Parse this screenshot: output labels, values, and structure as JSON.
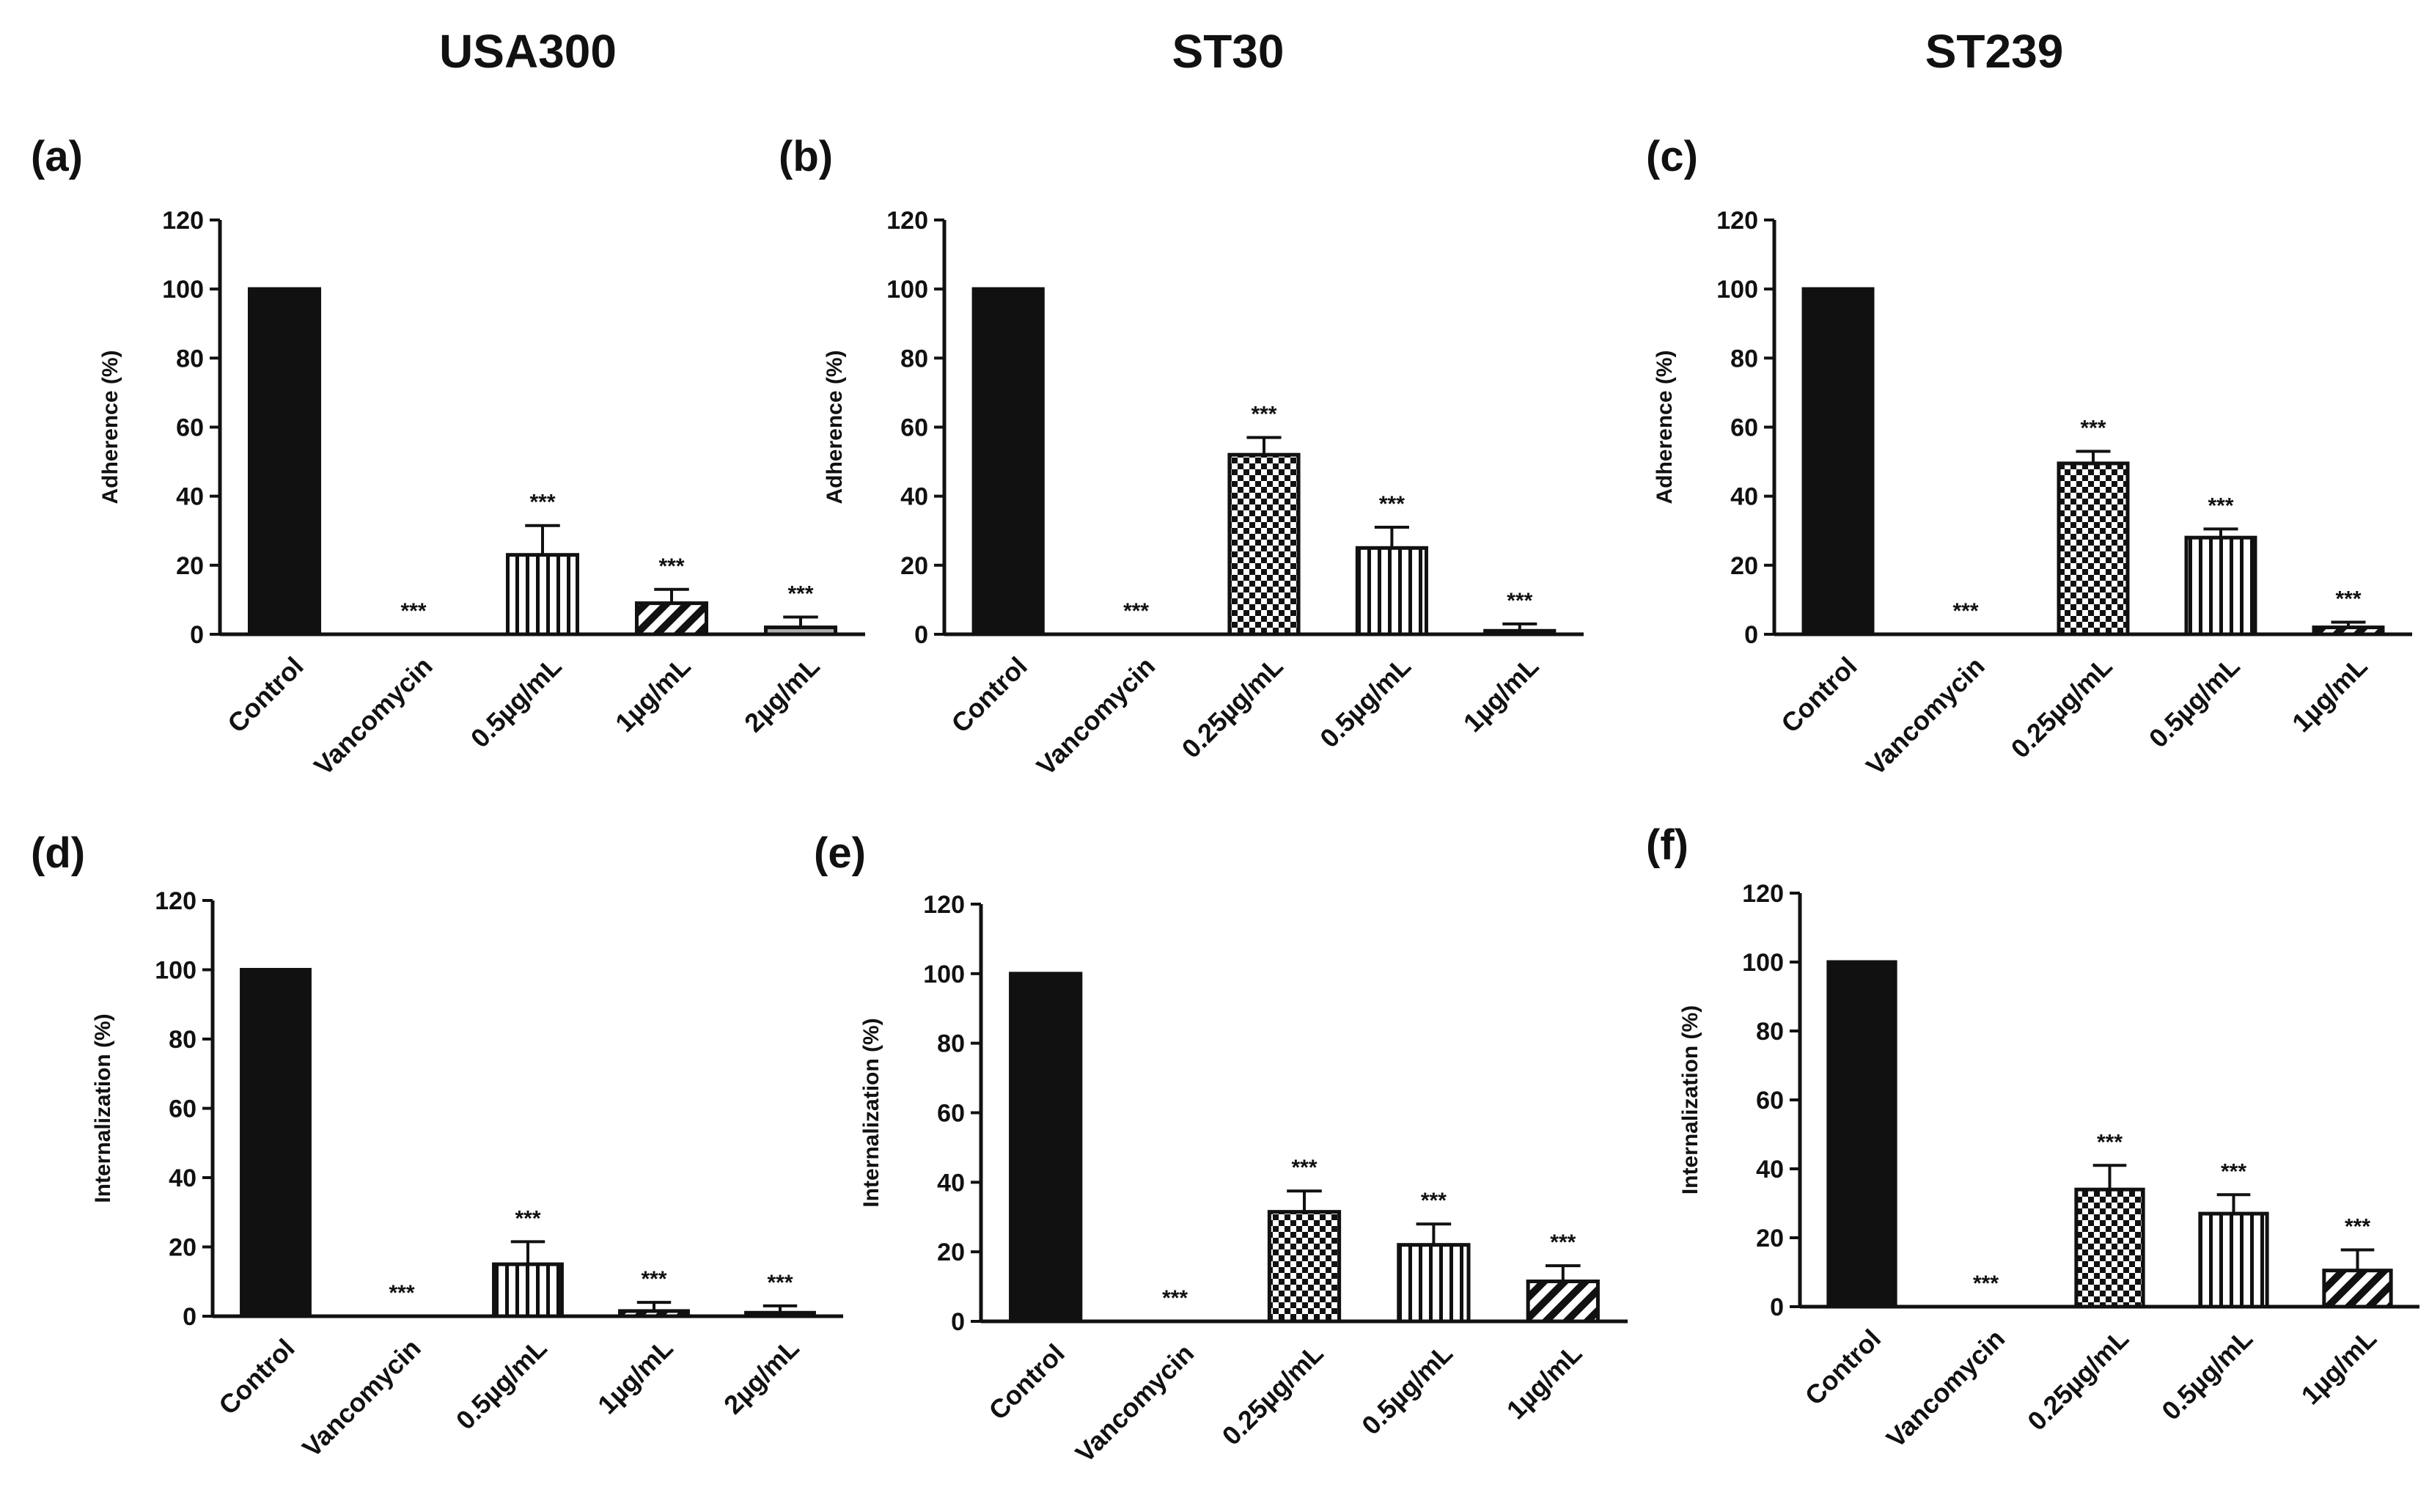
{
  "figure": {
    "column_titles": [
      "USA300",
      "ST30",
      "ST239"
    ]
  },
  "chart_data": [
    {
      "panel": "(a)",
      "type": "bar",
      "column": "USA300",
      "ylabel": "Adherence (%)",
      "ylim": [
        0,
        120
      ],
      "yticks": [
        0,
        20,
        40,
        60,
        80,
        100,
        120
      ],
      "categories": [
        "Control",
        "Vancomycin",
        "0.5µg/mL",
        "1µg/mL",
        "2µg/mL"
      ],
      "values": [
        100,
        0,
        23,
        9,
        2
      ],
      "errors": [
        0,
        0,
        8.5,
        4,
        3
      ],
      "significance": [
        "",
        "***",
        "***",
        "***",
        "***"
      ],
      "patterns": [
        "solid",
        "none",
        "vstripe",
        "diag",
        "gray"
      ]
    },
    {
      "panel": "(b)",
      "type": "bar",
      "column": "ST30",
      "ylabel": "Adherence (%)",
      "ylim": [
        0,
        120
      ],
      "yticks": [
        0,
        20,
        40,
        60,
        80,
        100,
        120
      ],
      "categories": [
        "Control",
        "Vancomycin",
        "0.25µg/mL",
        "0.5µg/mL",
        "1µg/mL"
      ],
      "values": [
        100,
        0,
        52,
        25,
        1
      ],
      "errors": [
        0,
        0,
        5,
        6,
        2
      ],
      "significance": [
        "",
        "***",
        "***",
        "***",
        "***"
      ],
      "patterns": [
        "solid",
        "none",
        "checker",
        "vstripe",
        "diag"
      ]
    },
    {
      "panel": "(c)",
      "type": "bar",
      "column": "ST239",
      "ylabel": "Adherence (%)",
      "ylim": [
        0,
        120
      ],
      "yticks": [
        0,
        20,
        40,
        60,
        80,
        100,
        120
      ],
      "categories": [
        "Control",
        "Vancomycin",
        "0.25µg/mL",
        "0.5µg/mL",
        "1µg/mL"
      ],
      "values": [
        100,
        0,
        49.5,
        28,
        2
      ],
      "errors": [
        0,
        0,
        3.5,
        2.5,
        1.5
      ],
      "significance": [
        "",
        "***",
        "***",
        "***",
        "***"
      ],
      "patterns": [
        "solid",
        "none",
        "checker",
        "vstripe",
        "diag"
      ]
    },
    {
      "panel": "(d)",
      "type": "bar",
      "column": "USA300",
      "ylabel": "Internalization (%)",
      "ylim": [
        0,
        120
      ],
      "yticks": [
        0,
        20,
        40,
        60,
        80,
        100,
        120
      ],
      "categories": [
        "Control",
        "Vancomycin",
        "0.5µg/mL",
        "1µg/mL",
        "2µg/mL"
      ],
      "values": [
        100,
        0,
        15,
        1.5,
        1
      ],
      "errors": [
        0,
        0,
        6.5,
        2.5,
        2
      ],
      "significance": [
        "",
        "***",
        "***",
        "***",
        "***"
      ],
      "patterns": [
        "solid",
        "none",
        "vstripe",
        "diag",
        "gray"
      ]
    },
    {
      "panel": "(e)",
      "type": "bar",
      "column": "ST30",
      "ylabel": "Internalization (%)",
      "ylim": [
        0,
        120
      ],
      "yticks": [
        0,
        20,
        40,
        60,
        80,
        100,
        120
      ],
      "categories": [
        "Control",
        "Vancomycin",
        "0.25µg/mL",
        "0.5µg/mL",
        "1µg/mL"
      ],
      "values": [
        100,
        0,
        31.5,
        22,
        11.5
      ],
      "errors": [
        0,
        0,
        6,
        6,
        4.5
      ],
      "significance": [
        "",
        "***",
        "***",
        "***",
        "***"
      ],
      "patterns": [
        "solid",
        "none",
        "checker",
        "vstripe",
        "diag"
      ]
    },
    {
      "panel": "(f)",
      "type": "bar",
      "column": "ST239",
      "ylabel": "Internalization (%)",
      "ylim": [
        0,
        120
      ],
      "yticks": [
        0,
        20,
        40,
        60,
        80,
        100,
        120
      ],
      "categories": [
        "Control",
        "Vancomycin",
        "0.25µg/mL",
        "0.5µg/mL",
        "1µg/mL"
      ],
      "values": [
        100,
        0,
        34,
        27,
        10.5
      ],
      "errors": [
        0,
        0,
        7,
        5.5,
        6
      ],
      "significance": [
        "",
        "***",
        "***",
        "***",
        "***"
      ],
      "patterns": [
        "solid",
        "none",
        "checker",
        "vstripe",
        "diag"
      ]
    }
  ]
}
